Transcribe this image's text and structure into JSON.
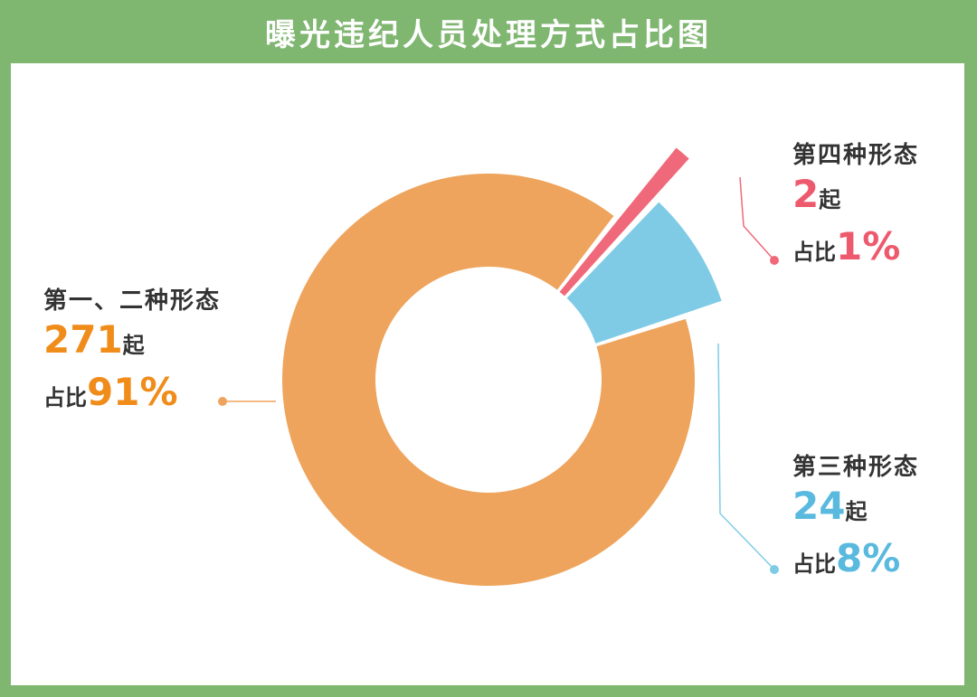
{
  "title": "曝光违纪人员处理方式占比图",
  "colors": {
    "background": "#7fb670",
    "panel": "#ffffff",
    "slice_1_2": "#eea45c",
    "slice_3": "#7fcbe6",
    "slice_4": "#f0697a",
    "slice_1_2_text": "#f08c1a",
    "slice_3_text": "#5ab9de",
    "slice_4_text": "#ee5a6d"
  },
  "chart_data": {
    "type": "pie",
    "title": "曝光违纪人员处理方式占比图",
    "donut": true,
    "categories": [
      "第一、二种形态",
      "第三种形态",
      "第四种形态"
    ],
    "values": [
      271,
      24,
      2
    ],
    "percents": [
      "91%",
      "8%",
      "1%"
    ],
    "count_unit": "起",
    "percent_prefix": "占比"
  }
}
